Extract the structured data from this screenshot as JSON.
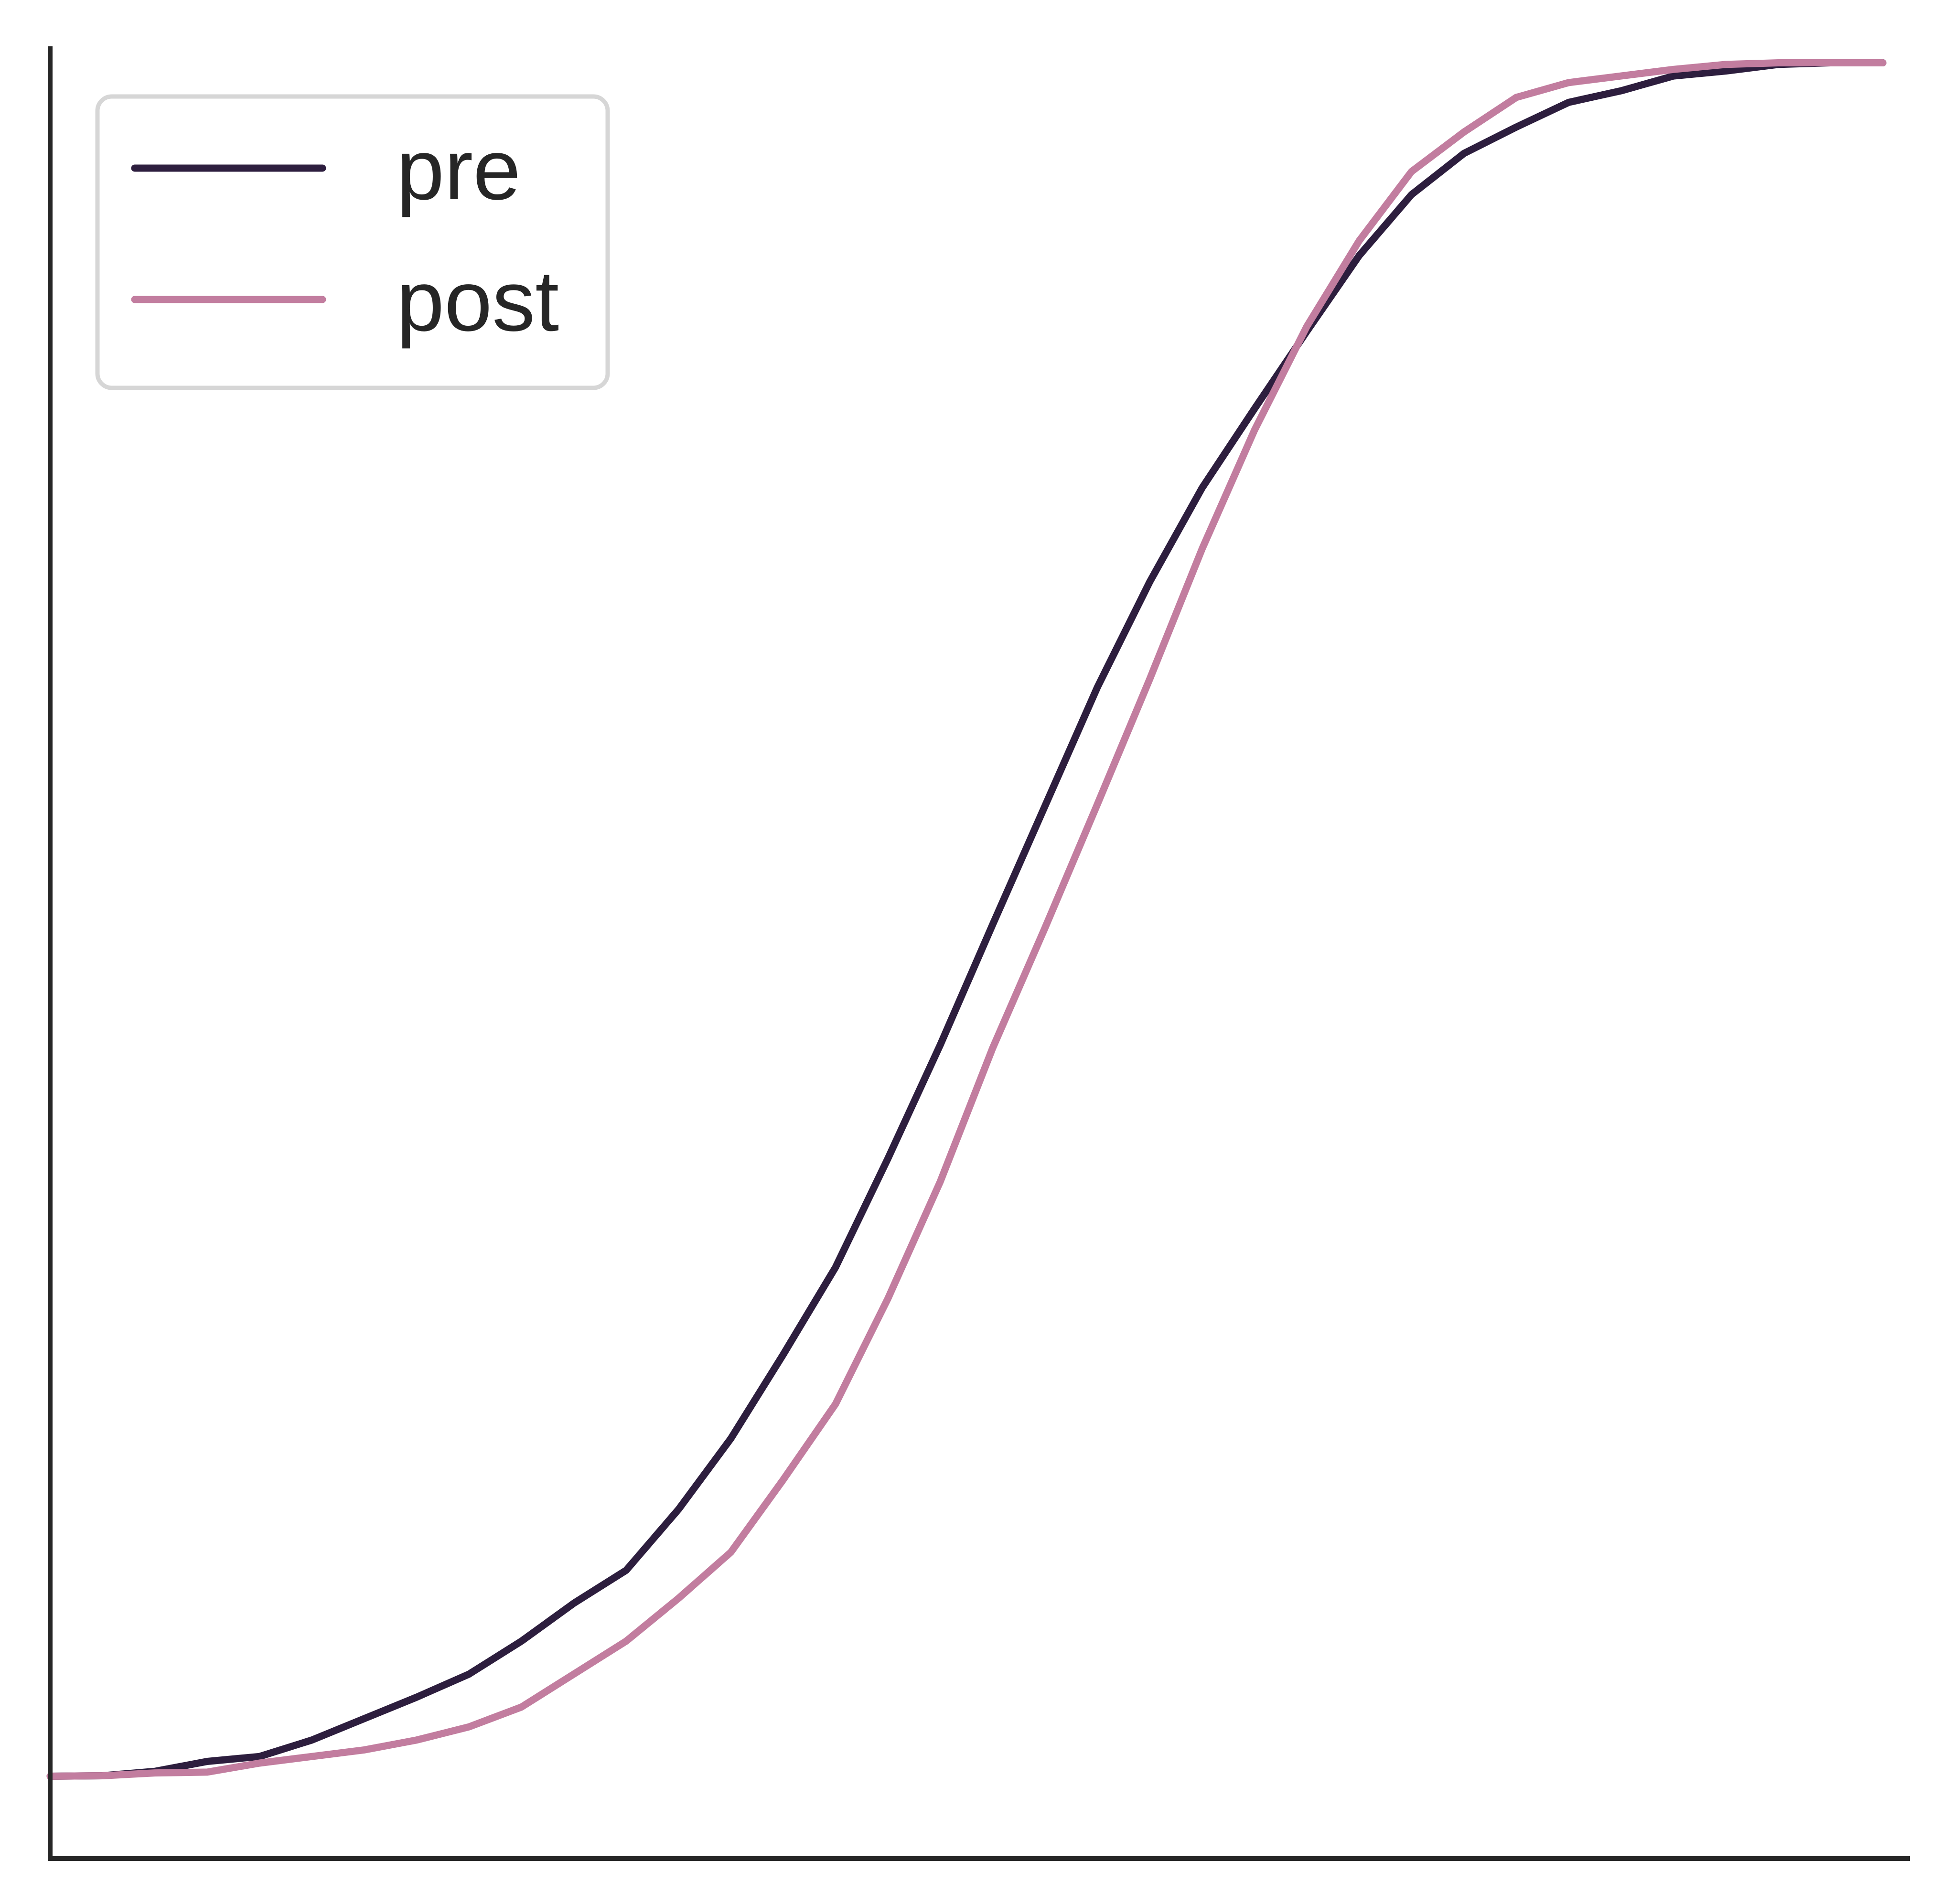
{
  "chart_data": {
    "type": "line",
    "title": "",
    "xlabel": "",
    "ylabel": "",
    "xlim": [
      0,
      35.5
    ],
    "ylim": [
      -0.05,
      1.05
    ],
    "grid": false,
    "legend_position": "top-left",
    "x": [
      0,
      1,
      2,
      3,
      4,
      5,
      6,
      7,
      8,
      9,
      10,
      11,
      12,
      13,
      14,
      15,
      16,
      17,
      18,
      19,
      20,
      21,
      22,
      23,
      24,
      25,
      26,
      27,
      28,
      29,
      30,
      31,
      32,
      33,
      34,
      35
    ],
    "series": [
      {
        "name": "pre",
        "color": "#2d1e3e",
        "values": [
          0.0,
          0.0003,
          0.003,
          0.009,
          0.012,
          0.022,
          0.035,
          0.048,
          0.062,
          0.082,
          0.105,
          0.125,
          0.162,
          0.205,
          0.256,
          0.309,
          0.375,
          0.444,
          0.517,
          0.589,
          0.661,
          0.725,
          0.782,
          0.83,
          0.877,
          0.923,
          0.96,
          0.985,
          1.001,
          1.016,
          1.023,
          1.032,
          1.035,
          1.039,
          1.04,
          1.04
        ]
      },
      {
        "name": "post",
        "color": "#c27d9f",
        "values": [
          0.0,
          0.0003,
          0.002,
          0.0025,
          0.008,
          0.012,
          0.016,
          0.022,
          0.03,
          0.042,
          0.062,
          0.082,
          0.108,
          0.136,
          0.18,
          0.226,
          0.29,
          0.361,
          0.442,
          0.515,
          0.59,
          0.666,
          0.745,
          0.817,
          0.88,
          0.932,
          0.974,
          0.998,
          1.019,
          1.028,
          1.032,
          1.036,
          1.039,
          1.04,
          1.04,
          1.04
        ]
      }
    ]
  }
}
